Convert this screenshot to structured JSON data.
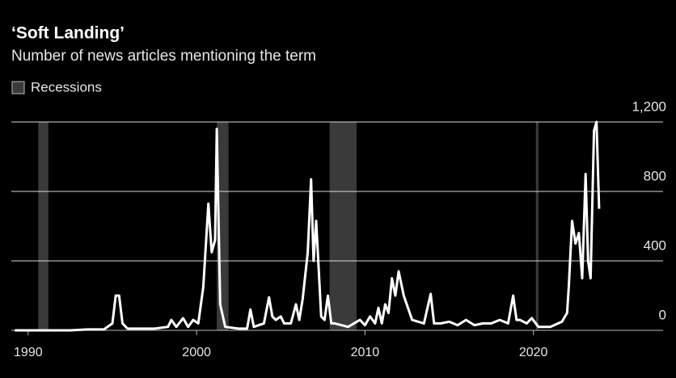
{
  "chart_data": {
    "type": "line",
    "title": "‘Soft Landing’",
    "subtitle": "Number of news articles mentioning the term",
    "legend": "Recessions",
    "recession_color": "#3a3a3a",
    "recessions": [
      [
        1990.6,
        1991.2
      ],
      [
        2001.2,
        2001.9
      ],
      [
        2007.9,
        2009.5
      ],
      [
        2020.15,
        2020.3
      ]
    ],
    "xlim": [
      1989,
      2027.7
    ],
    "xticks": [
      1990,
      2000,
      2010,
      2020
    ],
    "ylim": [
      0,
      1200
    ],
    "yticks": [
      0,
      400,
      800,
      {
        "value": 1200,
        "label": "1,200"
      }
    ],
    "grid": true,
    "series": [
      {
        "name": "Articles",
        "color": "#ffffff",
        "x": [
          1989.2,
          1990.5,
          1991.5,
          1992.5,
          1993.5,
          1994.5,
          1995.0,
          1995.2,
          1995.4,
          1995.6,
          1995.9,
          1996.5,
          1997.5,
          1998.3,
          1998.5,
          1998.8,
          1999.2,
          1999.5,
          1999.8,
          2000.1,
          2000.4,
          2000.7,
          2000.9,
          2001.1,
          2001.2,
          2001.4,
          2001.7,
          2002.5,
          2003.0,
          2003.2,
          2003.4,
          2004.0,
          2004.3,
          2004.5,
          2004.7,
          2005.0,
          2005.2,
          2005.6,
          2005.9,
          2006.1,
          2006.3,
          2006.6,
          2006.8,
          2006.95,
          2007.1,
          2007.4,
          2007.6,
          2007.8,
          2008.0,
          2008.2,
          2009.0,
          2009.7,
          2010.0,
          2010.3,
          2010.6,
          2010.8,
          2011.0,
          2011.2,
          2011.4,
          2011.6,
          2011.8,
          2012.0,
          2012.3,
          2012.8,
          2013.5,
          2013.9,
          2014.1,
          2014.5,
          2015.0,
          2015.5,
          2016.0,
          2016.5,
          2017.0,
          2017.5,
          2018.0,
          2018.5,
          2018.8,
          2019.0,
          2019.2,
          2019.6,
          2019.9,
          2020.3,
          2021.0,
          2021.7,
          2022.0,
          2022.1,
          2022.3,
          2022.5,
          2022.7,
          2022.9,
          2023.1,
          2023.25,
          2023.4,
          2023.6,
          2023.75,
          2023.9
        ],
        "values": [
          0,
          0,
          0,
          0,
          5,
          5,
          40,
          200,
          200,
          40,
          10,
          10,
          10,
          20,
          60,
          20,
          70,
          20,
          60,
          40,
          250,
          730,
          450,
          520,
          1160,
          150,
          20,
          10,
          10,
          120,
          20,
          40,
          190,
          80,
          60,
          80,
          40,
          40,
          150,
          60,
          180,
          450,
          870,
          400,
          630,
          80,
          60,
          200,
          40,
          40,
          20,
          60,
          30,
          80,
          40,
          130,
          40,
          150,
          100,
          300,
          200,
          340,
          200,
          60,
          40,
          210,
          40,
          40,
          50,
          30,
          60,
          30,
          40,
          40,
          60,
          40,
          200,
          60,
          60,
          40,
          70,
          20,
          20,
          50,
          100,
          250,
          630,
          500,
          560,
          300,
          900,
          400,
          300,
          1150,
          1200,
          700
        ]
      }
    ]
  }
}
